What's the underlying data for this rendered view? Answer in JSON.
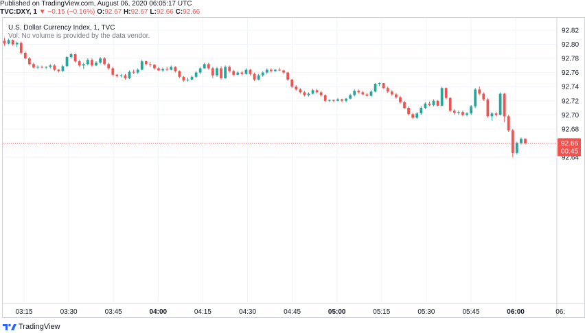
{
  "header": {
    "published": "Published on TradingView.com, August 06, 2020 06:05:17 UTC",
    "symbol": "TVC:DXY, 1",
    "change_arrow": "▼",
    "change": "−0.15 (−0.16%)",
    "o_label": "O:",
    "o_value": "92.67",
    "h_label": "H:",
    "h_value": "92.67",
    "l_label": "L:",
    "l_value": "92.66",
    "c_label": "C:",
    "c_value": "92.66"
  },
  "legend": {
    "title": "U.S. Dollar Currency Index, 1, TVC",
    "volume_note": "Vol: No volume is provided by the data vendor."
  },
  "price_label": {
    "price": "92.66",
    "countdown": "00:45"
  },
  "footer": {
    "brand": "TradingView"
  },
  "colors": {
    "up": "#26a69a",
    "down": "#ef5350",
    "grid": "#f0f3fa",
    "axis_text": "#131722"
  },
  "chart_data": {
    "type": "candlestick",
    "title": "U.S. Dollar Currency Index, 1, TVC",
    "y_ticks": [
      "92.82",
      "92.80",
      "92.78",
      "92.76",
      "92.74",
      "92.72",
      "92.70",
      "92.68",
      "92.66",
      "92.64"
    ],
    "y_range": [
      92.63,
      92.83
    ],
    "x_ticks": [
      "03:15",
      "03:30",
      "03:45",
      "04:00",
      "04:15",
      "04:30",
      "04:45",
      "05:00",
      "05:15",
      "05:30",
      "05:45",
      "06:00",
      "06:"
    ],
    "x_bold_ticks": [
      "04:00",
      "05:00",
      "06:00"
    ],
    "last_price": 92.66,
    "grid": true,
    "candles": [
      [
        92.805,
        92.809,
        92.798,
        92.801
      ],
      [
        92.801,
        92.808,
        92.8,
        92.806
      ],
      [
        92.806,
        92.807,
        92.798,
        92.8
      ],
      [
        92.8,
        92.804,
        92.796,
        92.802
      ],
      [
        92.802,
        92.804,
        92.786,
        92.788
      ],
      [
        92.788,
        92.79,
        92.779,
        92.78
      ],
      [
        92.78,
        92.782,
        92.77,
        92.772
      ],
      [
        92.772,
        92.774,
        92.766,
        92.767
      ],
      [
        92.767,
        92.77,
        92.765,
        92.768
      ],
      [
        92.768,
        92.77,
        92.766,
        92.767
      ],
      [
        92.767,
        92.769,
        92.765,
        92.768
      ],
      [
        92.768,
        92.772,
        92.766,
        92.77
      ],
      [
        92.77,
        92.772,
        92.762,
        92.764
      ],
      [
        92.764,
        92.765,
        92.76,
        92.762
      ],
      [
        92.762,
        92.771,
        92.761,
        92.769
      ],
      [
        92.769,
        92.783,
        92.768,
        92.782
      ],
      [
        92.782,
        92.788,
        92.78,
        92.786
      ],
      [
        92.786,
        92.787,
        92.774,
        92.776
      ],
      [
        92.776,
        92.778,
        92.768,
        92.77
      ],
      [
        92.77,
        92.774,
        92.765,
        92.772
      ],
      [
        92.772,
        92.78,
        92.77,
        92.778
      ],
      [
        92.778,
        92.78,
        92.768,
        92.77
      ],
      [
        92.77,
        92.776,
        92.769,
        92.774
      ],
      [
        92.774,
        92.782,
        92.772,
        92.78
      ],
      [
        92.78,
        92.782,
        92.77,
        92.772
      ],
      [
        92.772,
        92.774,
        92.764,
        92.766
      ],
      [
        92.766,
        92.768,
        92.755,
        92.757
      ],
      [
        92.757,
        92.758,
        92.753,
        92.755
      ],
      [
        92.755,
        92.758,
        92.753,
        92.756
      ],
      [
        92.756,
        92.758,
        92.75,
        92.752
      ],
      [
        92.752,
        92.763,
        92.751,
        92.761
      ],
      [
        92.761,
        92.764,
        92.758,
        92.76
      ],
      [
        92.76,
        92.766,
        92.758,
        92.764
      ],
      [
        92.764,
        92.778,
        92.763,
        92.776
      ],
      [
        92.776,
        92.777,
        92.77,
        92.772
      ],
      [
        92.772,
        92.775,
        92.768,
        92.771
      ],
      [
        92.771,
        92.772,
        92.764,
        92.766
      ],
      [
        92.766,
        92.768,
        92.762,
        92.763
      ],
      [
        92.763,
        92.767,
        92.761,
        92.765
      ],
      [
        92.765,
        92.768,
        92.762,
        92.764
      ],
      [
        92.764,
        92.77,
        92.763,
        92.768
      ],
      [
        92.768,
        92.769,
        92.76,
        92.762
      ],
      [
        92.762,
        92.763,
        92.752,
        92.754
      ],
      [
        92.754,
        92.755,
        92.747,
        92.749
      ],
      [
        92.749,
        92.753,
        92.747,
        92.75
      ],
      [
        92.75,
        92.756,
        92.749,
        92.754
      ],
      [
        92.754,
        92.762,
        92.752,
        92.76
      ],
      [
        92.76,
        92.768,
        92.758,
        92.766
      ],
      [
        92.766,
        92.774,
        92.765,
        92.772
      ],
      [
        92.772,
        92.774,
        92.764,
        92.766
      ],
      [
        92.766,
        92.768,
        92.752,
        92.756
      ],
      [
        92.756,
        92.768,
        92.754,
        92.766
      ],
      [
        92.766,
        92.769,
        92.75,
        92.752
      ],
      [
        92.752,
        92.77,
        92.751,
        92.768
      ],
      [
        92.768,
        92.77,
        92.76,
        92.762
      ],
      [
        92.762,
        92.764,
        92.755,
        92.757
      ],
      [
        92.757,
        92.762,
        92.756,
        92.76
      ],
      [
        92.76,
        92.762,
        92.756,
        92.758
      ],
      [
        92.758,
        92.766,
        92.757,
        92.764
      ],
      [
        92.764,
        92.765,
        92.756,
        92.758
      ],
      [
        92.758,
        92.76,
        92.748,
        92.75
      ],
      [
        92.75,
        92.758,
        92.749,
        92.756
      ],
      [
        92.756,
        92.762,
        92.754,
        92.76
      ],
      [
        92.76,
        92.766,
        92.758,
        92.764
      ],
      [
        92.764,
        92.766,
        92.76,
        92.762
      ],
      [
        92.762,
        92.765,
        92.761,
        92.764
      ],
      [
        92.764,
        92.767,
        92.762,
        92.763
      ],
      [
        92.763,
        92.764,
        92.758,
        92.76
      ],
      [
        92.76,
        92.761,
        92.748,
        92.75
      ],
      [
        92.75,
        92.751,
        92.738,
        92.74
      ],
      [
        92.74,
        92.742,
        92.734,
        92.736
      ],
      [
        92.736,
        92.738,
        92.73,
        92.732
      ],
      [
        92.732,
        92.734,
        92.726,
        92.728
      ],
      [
        92.728,
        92.732,
        92.726,
        92.73
      ],
      [
        92.73,
        92.737,
        92.729,
        92.735
      ],
      [
        92.735,
        92.737,
        92.73,
        92.732
      ],
      [
        92.732,
        92.734,
        92.726,
        92.728
      ],
      [
        92.728,
        92.729,
        92.718,
        92.72
      ],
      [
        92.72,
        92.722,
        92.718,
        92.721
      ],
      [
        92.721,
        92.722,
        92.718,
        92.72
      ],
      [
        92.72,
        92.724,
        92.719,
        92.722
      ],
      [
        92.722,
        92.723,
        92.718,
        92.72
      ],
      [
        92.72,
        92.724,
        92.718,
        92.723
      ],
      [
        92.723,
        92.73,
        92.722,
        92.728
      ],
      [
        92.728,
        92.736,
        92.726,
        92.734
      ],
      [
        92.734,
        92.736,
        92.73,
        92.732
      ],
      [
        92.732,
        92.734,
        92.728,
        92.729
      ],
      [
        92.729,
        92.731,
        92.726,
        92.727
      ],
      [
        92.727,
        92.735,
        92.726,
        92.733
      ],
      [
        92.733,
        92.745,
        92.732,
        92.744
      ],
      [
        92.744,
        92.746,
        92.741,
        92.745
      ],
      [
        92.745,
        92.745,
        92.737,
        92.738
      ],
      [
        92.738,
        92.74,
        92.731,
        92.733
      ],
      [
        92.733,
        92.735,
        92.727,
        92.729
      ],
      [
        92.729,
        92.731,
        92.723,
        92.725
      ],
      [
        92.725,
        92.727,
        92.716,
        92.718
      ],
      [
        92.718,
        92.72,
        92.708,
        92.71
      ],
      [
        92.71,
        92.712,
        92.699,
        92.701
      ],
      [
        92.701,
        92.703,
        92.694,
        92.696
      ],
      [
        92.696,
        92.704,
        92.694,
        92.702
      ],
      [
        92.702,
        92.712,
        92.7,
        92.71
      ],
      [
        92.71,
        92.718,
        92.708,
        92.716
      ],
      [
        92.716,
        92.719,
        92.712,
        92.714
      ],
      [
        92.714,
        92.722,
        92.712,
        92.72
      ],
      [
        92.72,
        92.721,
        92.712,
        92.713
      ],
      [
        92.713,
        92.74,
        92.712,
        92.738
      ],
      [
        92.738,
        92.739,
        92.722,
        92.724
      ],
      [
        92.724,
        92.725,
        92.704,
        92.706
      ],
      [
        92.706,
        92.708,
        92.7,
        92.703
      ],
      [
        92.703,
        92.706,
        92.7,
        92.704
      ],
      [
        92.704,
        92.706,
        92.698,
        92.7
      ],
      [
        92.7,
        92.704,
        92.698,
        92.702
      ],
      [
        92.702,
        92.714,
        92.7,
        92.712
      ],
      [
        92.712,
        92.738,
        92.71,
        92.736
      ],
      [
        92.736,
        92.74,
        92.728,
        92.73
      ],
      [
        92.73,
        92.732,
        92.72,
        92.722
      ],
      [
        92.722,
        92.724,
        92.696,
        92.698
      ],
      [
        92.698,
        92.704,
        92.692,
        92.702
      ],
      [
        92.702,
        92.704,
        92.698,
        92.7
      ],
      [
        92.7,
        92.732,
        92.699,
        92.73
      ],
      [
        92.73,
        92.731,
        92.69,
        92.698
      ],
      [
        92.698,
        92.7,
        92.676,
        92.678
      ],
      [
        92.678,
        92.68,
        92.64,
        92.646
      ],
      [
        92.646,
        92.662,
        92.644,
        92.66
      ],
      [
        92.66,
        92.668,
        92.658,
        92.666
      ],
      [
        92.666,
        92.667,
        92.658,
        92.66
      ]
    ]
  }
}
